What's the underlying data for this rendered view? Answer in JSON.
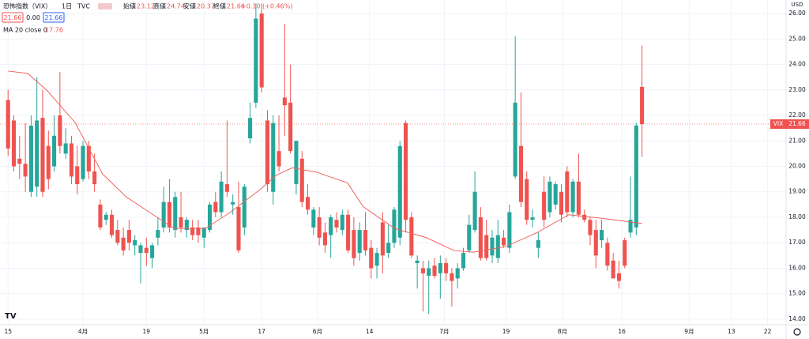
{
  "chart_data": {
    "type": "candlestick",
    "title": "恐怖指数（VIX）",
    "interval": "1日",
    "source": "TVC",
    "currency": "USD",
    "symbol": "VIX",
    "ohlc_labels": [
      "始値",
      "高値",
      "安値",
      "終値"
    ],
    "change": "+0.10 (+0.46%)",
    "spread": "0.00",
    "up_color": "#26a69a",
    "down_color": "#ef5350",
    "grid": true,
    "candles": [
      [
        22.6,
        23.0,
        20.4,
        20.7
      ],
      [
        21.8,
        22.0,
        19.8,
        20.0
      ],
      [
        20.3,
        21.2,
        19.5,
        20.1
      ],
      [
        20.1,
        21.7,
        19.0,
        19.6
      ],
      [
        19.0,
        22.0,
        18.8,
        21.6
      ],
      [
        19.2,
        23.5,
        18.8,
        21.8
      ],
      [
        21.9,
        23.0,
        18.8,
        19.0
      ],
      [
        20.8,
        21.4,
        19.1,
        19.5
      ],
      [
        20.0,
        22.0,
        19.8,
        21.2
      ],
      [
        22.0,
        23.7,
        20.5,
        20.8
      ],
      [
        20.5,
        21.5,
        20.3,
        20.9
      ],
      [
        20.9,
        21.2,
        19.3,
        19.6
      ],
      [
        20.0,
        20.8,
        18.9,
        19.3
      ],
      [
        19.5,
        21.0,
        19.4,
        20.8
      ],
      [
        20.8,
        21.0,
        19.5,
        19.8
      ],
      [
        19.8,
        20.5,
        19.0,
        19.3
      ],
      [
        18.5,
        18.7,
        17.5,
        17.6
      ],
      [
        17.9,
        18.2,
        17.7,
        18.1
      ],
      [
        18.1,
        18.3,
        17.2,
        17.3
      ],
      [
        17.5,
        17.9,
        16.9,
        17.0
      ],
      [
        17.2,
        17.6,
        16.5,
        16.7
      ],
      [
        17.5,
        17.9,
        16.7,
        17.0
      ],
      [
        16.9,
        17.3,
        16.5,
        17.1
      ],
      [
        16.6,
        17.0,
        15.4,
        16.9
      ],
      [
        16.8,
        17.2,
        16.1,
        16.6
      ],
      [
        16.4,
        17.0,
        16.0,
        16.9
      ],
      [
        17.2,
        18.0,
        16.9,
        17.5
      ],
      [
        17.6,
        19.2,
        17.4,
        18.6
      ],
      [
        18.6,
        19.5,
        17.4,
        17.6
      ],
      [
        17.5,
        19.0,
        17.2,
        18.8
      ],
      [
        18.0,
        19.0,
        17.4,
        17.6
      ],
      [
        17.5,
        18.0,
        17.2,
        17.9
      ],
      [
        17.6,
        17.9,
        17.1,
        17.3
      ],
      [
        17.6,
        17.9,
        17.0,
        17.3
      ],
      [
        17.2,
        17.6,
        16.8,
        17.6
      ],
      [
        17.5,
        18.6,
        17.4,
        18.5
      ],
      [
        18.6,
        19.0,
        18.0,
        18.2
      ],
      [
        18.2,
        19.8,
        18.0,
        19.4
      ],
      [
        19.3,
        21.8,
        18.8,
        19.0
      ],
      [
        18.5,
        18.9,
        18.1,
        18.6
      ],
      [
        18.4,
        19.4,
        16.6,
        16.7
      ],
      [
        17.6,
        19.3,
        17.3,
        19.2
      ],
      [
        21.1,
        22.5,
        20.9,
        21.9
      ],
      [
        22.5,
        26.4,
        22.3,
        25.8
      ],
      [
        26.0,
        26.4,
        22.9,
        23.1
      ],
      [
        21.8,
        22.2,
        19.0,
        19.3
      ],
      [
        19.0,
        22.0,
        18.5,
        21.7
      ],
      [
        20.6,
        22.0,
        19.8,
        20.0
      ],
      [
        22.7,
        25.6,
        21.2,
        22.4
      ],
      [
        22.5,
        24.0,
        20.5,
        20.6
      ],
      [
        19.3,
        21.0,
        18.9,
        21.0
      ],
      [
        20.3,
        20.6,
        18.4,
        18.6
      ],
      [
        18.8,
        19.3,
        18.1,
        18.3
      ],
      [
        17.6,
        18.4,
        17.3,
        18.3
      ],
      [
        18.0,
        18.4,
        16.9,
        17.2
      ],
      [
        17.4,
        17.8,
        16.6,
        16.9
      ],
      [
        17.3,
        18.1,
        16.4,
        18.0
      ],
      [
        17.9,
        18.2,
        17.4,
        17.6
      ],
      [
        17.5,
        18.3,
        17.3,
        18.1
      ],
      [
        18.1,
        18.3,
        16.6,
        16.7
      ],
      [
        17.5,
        18.0,
        16.1,
        16.4
      ],
      [
        16.6,
        17.8,
        16.3,
        17.5
      ],
      [
        17.5,
        18.2,
        16.5,
        16.7
      ],
      [
        16.8,
        17.1,
        15.6,
        16.0
      ],
      [
        16.1,
        16.8,
        15.6,
        16.6
      ],
      [
        17.8,
        18.2,
        15.8,
        16.5
      ],
      [
        16.6,
        17.7,
        16.4,
        17.0
      ],
      [
        17.0,
        18.4,
        16.8,
        18.3
      ],
      [
        17.2,
        21.0,
        16.9,
        20.8
      ],
      [
        21.7,
        21.8,
        17.4,
        17.9
      ],
      [
        18.0,
        18.2,
        16.4,
        16.5
      ],
      [
        16.2,
        16.5,
        15.2,
        16.3
      ],
      [
        16.0,
        16.3,
        14.3,
        15.8
      ],
      [
        15.7,
        16.3,
        14.2,
        16.0
      ],
      [
        16.1,
        16.4,
        15.6,
        15.7
      ],
      [
        15.8,
        16.5,
        14.8,
        16.2
      ],
      [
        16.2,
        16.4,
        15.5,
        15.8
      ],
      [
        15.8,
        16.0,
        14.5,
        15.5
      ],
      [
        15.6,
        16.2,
        15.2,
        16.0
      ],
      [
        16.0,
        16.8,
        15.9,
        16.6
      ],
      [
        16.7,
        18.1,
        16.6,
        17.7
      ],
      [
        17.5,
        19.8,
        17.4,
        19.0
      ],
      [
        18.0,
        18.4,
        16.3,
        16.4
      ],
      [
        17.3,
        17.9,
        16.3,
        16.4
      ],
      [
        16.5,
        17.5,
        16.2,
        17.2
      ],
      [
        16.4,
        17.9,
        16.2,
        17.3
      ],
      [
        17.2,
        17.5,
        16.8,
        16.9
      ],
      [
        16.8,
        18.5,
        16.6,
        18.2
      ],
      [
        19.6,
        25.1,
        19.5,
        22.5
      ],
      [
        20.8,
        22.9,
        18.4,
        18.6
      ],
      [
        19.5,
        19.8,
        17.7,
        17.9
      ],
      [
        17.9,
        18.3,
        17.6,
        18.0
      ],
      [
        16.8,
        17.4,
        16.4,
        17.1
      ],
      [
        19.0,
        19.6,
        17.6,
        17.9
      ],
      [
        18.2,
        19.6,
        18.0,
        19.4
      ],
      [
        18.5,
        19.4,
        18.3,
        19.3
      ],
      [
        19.0,
        19.3,
        17.8,
        18.1
      ],
      [
        19.8,
        20.0,
        18.0,
        18.2
      ],
      [
        18.2,
        19.5,
        18.0,
        19.4
      ],
      [
        19.4,
        20.5,
        18.0,
        18.1
      ],
      [
        18.1,
        18.3,
        17.8,
        17.9
      ],
      [
        17.9,
        18.0,
        16.9,
        17.3
      ],
      [
        17.5,
        17.9,
        16.0,
        16.5
      ],
      [
        17.1,
        17.9,
        16.8,
        17.5
      ],
      [
        17.0,
        17.2,
        15.9,
        16.1
      ],
      [
        16.3,
        16.6,
        15.6,
        15.6
      ],
      [
        15.8,
        16.3,
        15.2,
        15.5
      ],
      [
        17.1,
        17.2,
        16.0,
        16.1
      ],
      [
        17.4,
        19.6,
        17.2,
        17.9
      ],
      [
        17.6,
        21.7,
        17.3,
        21.6
      ],
      [
        23.12,
        24.74,
        20.37,
        21.66
      ]
    ],
    "ma": {
      "name": "MA 20 close 0",
      "color": "#f0645f",
      "x": [
        0,
        3.4,
        6.8,
        11.6,
        16.4,
        20.5,
        24.7,
        28.8,
        34.2,
        38.4,
        41.1,
        43.8,
        46.6,
        49.3,
        53.4,
        58.9,
        61.6,
        67.1,
        72.6,
        77.4,
        80.8,
        86.3,
        91.8,
        97.3,
        104.2,
        110
      ],
      "values": [
        23.74,
        23.65,
        22.97,
        21.73,
        19.7,
        18.8,
        18.17,
        17.56,
        17.56,
        18.17,
        18.64,
        19.1,
        19.66,
        19.94,
        19.78,
        19.35,
        18.42,
        17.56,
        17.2,
        16.69,
        16.63,
        16.85,
        17.4,
        18.1,
        17.93,
        17.76
      ]
    },
    "xlim": [
      -1.4,
      135
    ],
    "ylim": [
      13.78,
      26.53
    ],
    "xticks": [
      {
        "value": 0,
        "label": "15"
      },
      {
        "value": 13,
        "label": "4月"
      },
      {
        "value": 24,
        "label": "19"
      },
      {
        "value": 34,
        "label": "5月"
      },
      {
        "value": 44,
        "label": "17"
      },
      {
        "value": 53.7,
        "label": "6月"
      },
      {
        "value": 62.7,
        "label": "14"
      },
      {
        "value": 75.7,
        "label": "7月"
      },
      {
        "value": 86.4,
        "label": "19"
      },
      {
        "value": 96.2,
        "label": "8月"
      },
      {
        "value": 106.5,
        "label": "16"
      },
      {
        "value": 118.2,
        "label": "9月"
      },
      {
        "value": 125.5,
        "label": "13"
      },
      {
        "value": 131.8,
        "label": "22"
      }
    ],
    "yticks": [
      {
        "value": 14,
        "label": "14.00"
      },
      {
        "value": 15,
        "label": "15.00"
      },
      {
        "value": 16,
        "label": "16.00"
      },
      {
        "value": 17,
        "label": "17.00"
      },
      {
        "value": 18,
        "label": "18.00"
      },
      {
        "value": 19,
        "label": "19.00"
      },
      {
        "value": 20,
        "label": "20.00"
      },
      {
        "value": 21,
        "label": "21.00"
      },
      {
        "value": 22,
        "label": "22.00"
      },
      {
        "value": 23,
        "label": "23.00"
      },
      {
        "value": 24,
        "label": "24.00"
      },
      {
        "value": 25,
        "label": "25.00"
      },
      {
        "value": 26,
        "label": "26.00"
      }
    ]
  }
}
